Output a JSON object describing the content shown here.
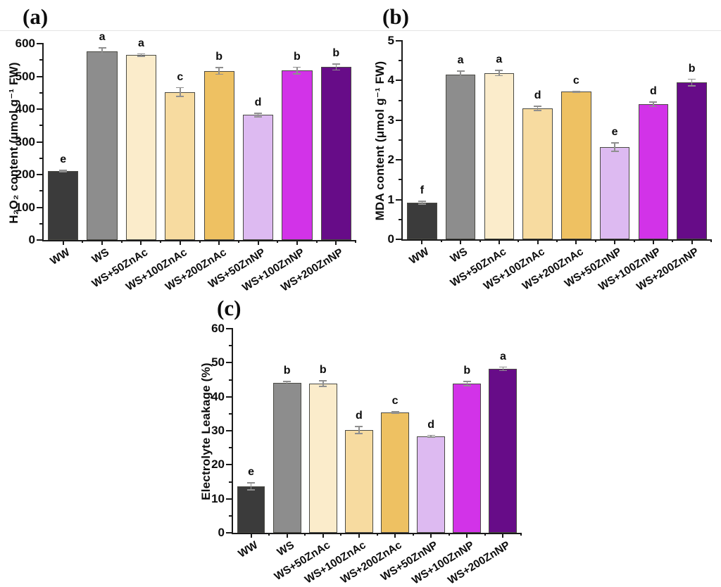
{
  "figure": {
    "background": "#ffffff",
    "divider_color": "#e4e4e4",
    "axis_color": "#1a1a1a",
    "error_bar_color": "#8f8f8f",
    "text_color": "#111111"
  },
  "bar_colors": [
    "#3b3b3b",
    "#8d8d8d",
    "#fbeccb",
    "#f7dba0",
    "#eec162",
    "#ddbaf1",
    "#d233e8",
    "#670c88"
  ],
  "chart_data": [
    {
      "type": "bar",
      "panel_label": "(a)",
      "title": "",
      "xlabel": "",
      "ylabel": "H₂O₂ content (μmol g⁻¹ FW)",
      "ylim": [
        0,
        600
      ],
      "ytick_step": 100,
      "minor_tick_step": 50,
      "grid": false,
      "legend": "none",
      "categories": [
        "WW",
        "WS",
        "WS+50ZnAc",
        "WS+100ZnAc",
        "WS+200ZnAc",
        "WS+50ZnNP",
        "WS+100ZnNP",
        "WS+200ZnNP"
      ],
      "values": [
        211,
        577,
        565,
        452,
        517,
        382,
        518,
        529
      ],
      "errors": [
        4,
        12,
        6,
        15,
        12,
        7,
        12,
        11
      ],
      "sig_letters": [
        "e",
        "a",
        "a",
        "c",
        "b",
        "d",
        "b",
        "b"
      ]
    },
    {
      "type": "bar",
      "panel_label": "(b)",
      "title": "",
      "xlabel": "",
      "ylabel": "MDA content (μmol g⁻¹ FW)",
      "ylim": [
        0,
        5
      ],
      "ytick_step": 1,
      "minor_tick_step": 0.5,
      "grid": false,
      "legend": "none",
      "categories": [
        "WW",
        "WS",
        "WS+50ZnAc",
        "WS+100ZnAc",
        "WS+200ZnAc",
        "WS+50ZnNP",
        "WS+100ZnNP",
        "WS+200ZnNP"
      ],
      "values": [
        0.92,
        4.15,
        4.19,
        3.3,
        3.72,
        2.32,
        3.4,
        3.95
      ],
      "errors": [
        0.05,
        0.1,
        0.08,
        0.07,
        0.03,
        0.12,
        0.07,
        0.1
      ],
      "sig_letters": [
        "f",
        "a",
        "a",
        "d",
        "c",
        "e",
        "d",
        "b"
      ]
    },
    {
      "type": "bar",
      "panel_label": "(c)",
      "title": "",
      "xlabel": "",
      "ylabel": "Electrolyte Leakage (%)",
      "ylim": [
        0,
        60
      ],
      "ytick_step": 10,
      "minor_tick_step": 5,
      "grid": false,
      "legend": "none",
      "categories": [
        "WW",
        "WS",
        "WS+50ZnAc",
        "WS+100ZnAc",
        "WS+200ZnAc",
        "WS+50ZnNP",
        "WS+100ZnNP",
        "WS+200ZnNP"
      ],
      "values": [
        13.7,
        44.1,
        43.9,
        30.2,
        35.4,
        28.4,
        43.9,
        48.2
      ],
      "errors": [
        1.2,
        0.5,
        1.0,
        1.2,
        0.4,
        0.4,
        0.8,
        0.7
      ],
      "sig_letters": [
        "e",
        "b",
        "b",
        "d",
        "c",
        "d",
        "b",
        "a"
      ]
    }
  ]
}
